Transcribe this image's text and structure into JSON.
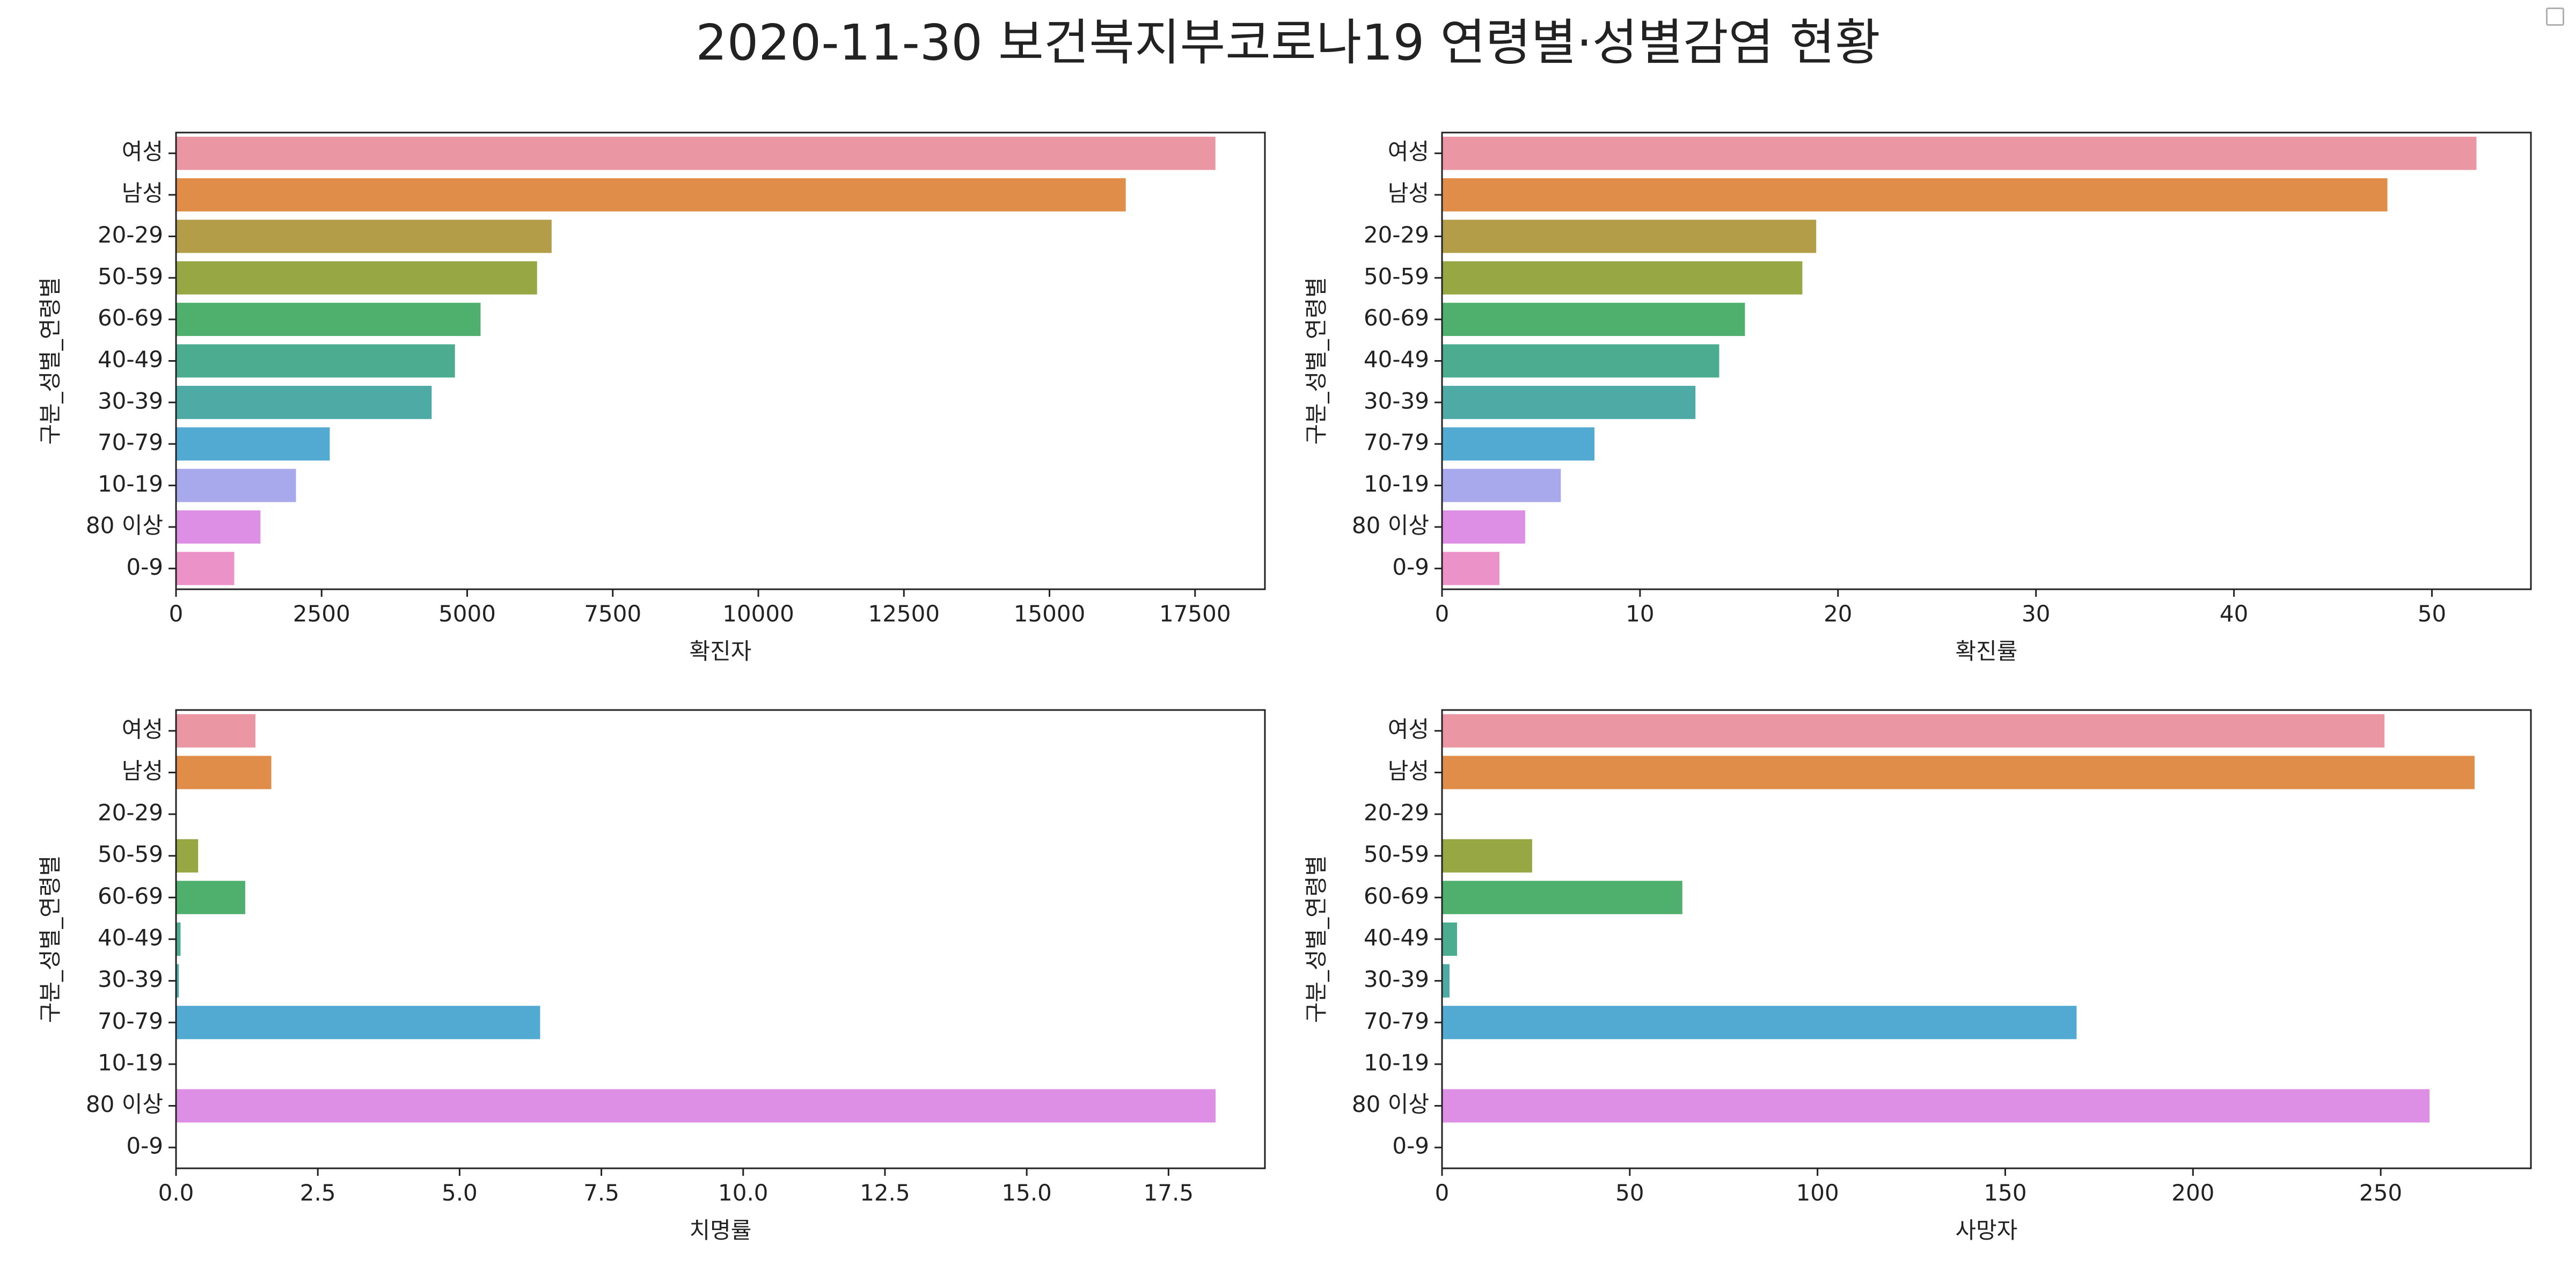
{
  "title": "2020-11-30 보건복지부코로나19 연령별·성별감염 현황",
  "colors": [
    "#ea96a3",
    "#e18d4a",
    "#b39d48",
    "#96a744",
    "#4fb06d",
    "#4cac8f",
    "#4daaa5",
    "#52aad3",
    "#a8a8ec",
    "#dc8fe4",
    "#eb93c8"
  ],
  "chart_data": [
    {
      "type": "bar",
      "orientation": "horizontal",
      "categories": [
        "여성",
        "남성",
        "20-29",
        "50-59",
        "60-69",
        "40-49",
        "30-39",
        "70-79",
        "10-19",
        "80 이상",
        "0-9"
      ],
      "values": [
        17850,
        16310,
        6450,
        6200,
        5230,
        4790,
        4390,
        2640,
        2060,
        1450,
        1000
      ],
      "xlabel": "확진자",
      "ylabel": "구분_성별_연령별",
      "xlim": [
        0,
        18700
      ],
      "xticks": [
        0,
        2500,
        5000,
        7500,
        10000,
        12500,
        15000,
        17500
      ],
      "xtick_labels": [
        "0",
        "2500",
        "5000",
        "7500",
        "10000",
        "12500",
        "15000",
        "17500"
      ]
    },
    {
      "type": "bar",
      "orientation": "horizontal",
      "categories": [
        "여성",
        "남성",
        "20-29",
        "50-59",
        "60-69",
        "40-49",
        "30-39",
        "70-79",
        "10-19",
        "80 이상",
        "0-9"
      ],
      "values": [
        52.25,
        47.75,
        18.9,
        18.2,
        15.3,
        14.0,
        12.8,
        7.7,
        6.0,
        4.2,
        2.9
      ],
      "xlabel": "확진률",
      "ylabel": "구분_성별_연령별",
      "xlim": [
        0,
        55
      ],
      "xticks": [
        0,
        10,
        20,
        30,
        40,
        50
      ],
      "xtick_labels": [
        "0",
        "10",
        "20",
        "30",
        "40",
        "50"
      ]
    },
    {
      "type": "bar",
      "orientation": "horizontal",
      "categories": [
        "여성",
        "남성",
        "20-29",
        "50-59",
        "60-69",
        "40-49",
        "30-39",
        "70-79",
        "10-19",
        "80 이상",
        "0-9"
      ],
      "values": [
        1.4,
        1.68,
        0,
        0.39,
        1.22,
        0.08,
        0.05,
        6.42,
        0,
        18.33,
        0
      ],
      "xlabel": "치명률",
      "ylabel": "구분_성별_연령별",
      "xlim": [
        0,
        19.2
      ],
      "xticks": [
        0,
        2.5,
        5,
        7.5,
        10,
        12.5,
        15,
        17.5
      ],
      "xtick_labels": [
        "0.0",
        "2.5",
        "5.0",
        "7.5",
        "10.0",
        "12.5",
        "15.0",
        "17.5"
      ]
    },
    {
      "type": "bar",
      "orientation": "horizontal",
      "categories": [
        "여성",
        "남성",
        "20-29",
        "50-59",
        "60-69",
        "40-49",
        "30-39",
        "70-79",
        "10-19",
        "80 이상",
        "0-9"
      ],
      "values": [
        251,
        275,
        0,
        24,
        64,
        4,
        2,
        169,
        0,
        263,
        0
      ],
      "xlabel": "사망자",
      "ylabel": "구분_성별_연령별",
      "xlim": [
        0,
        290
      ],
      "xticks": [
        0,
        50,
        100,
        150,
        200,
        250
      ],
      "xtick_labels": [
        "0",
        "50",
        "100",
        "150",
        "200",
        "250"
      ]
    }
  ]
}
